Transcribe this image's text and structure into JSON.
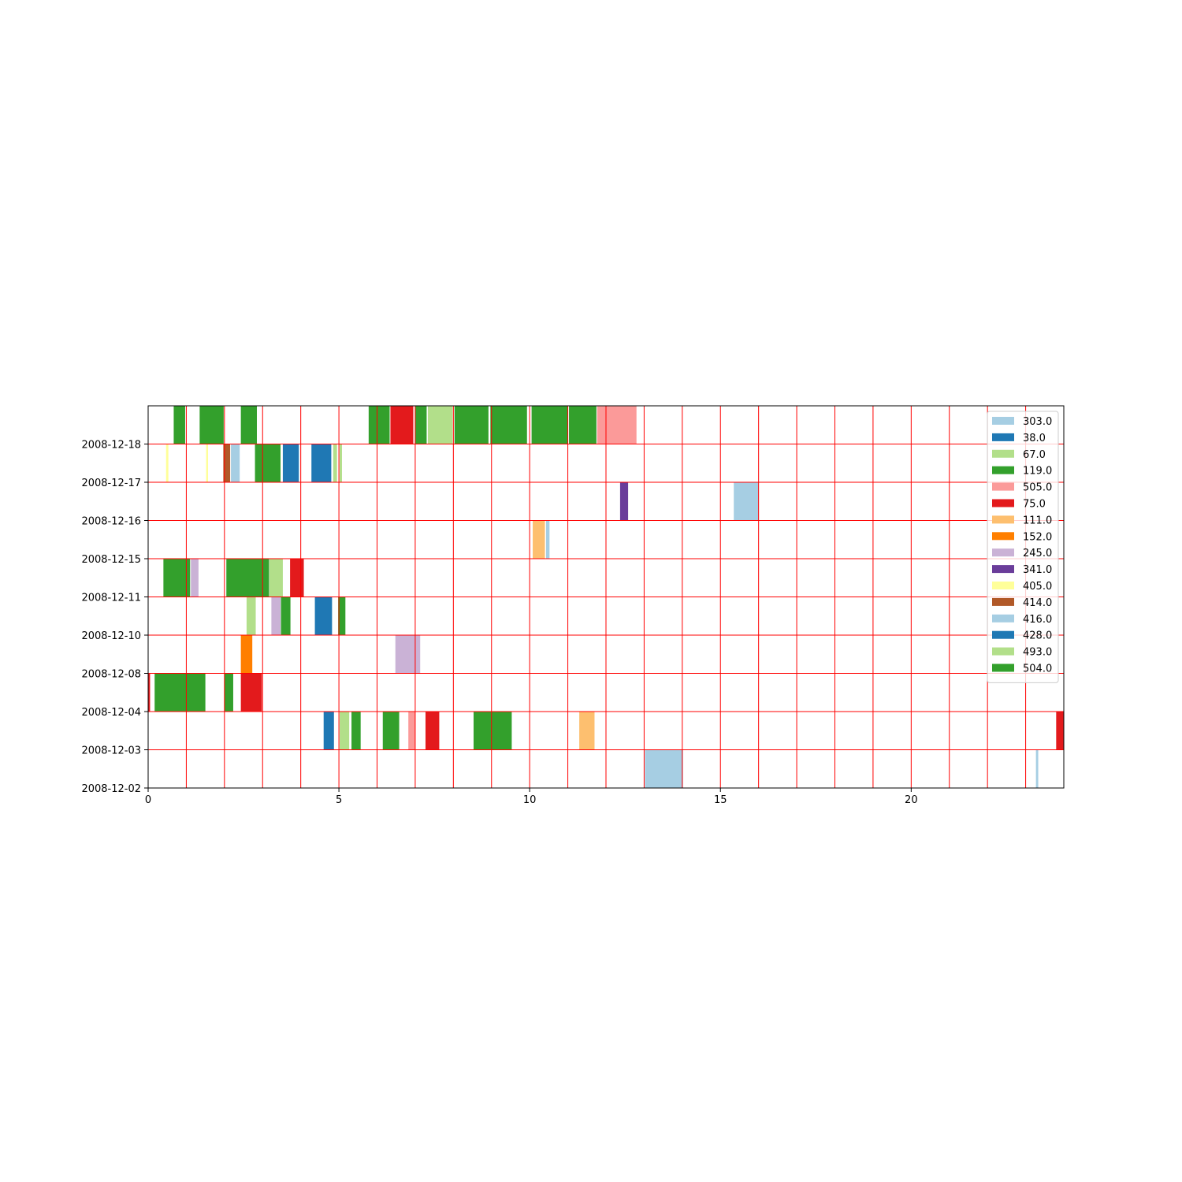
{
  "chart_data": {
    "type": "bar",
    "orientation": "horizontal-timeline",
    "title": "",
    "xlabel": "",
    "ylabel": "",
    "xlim": [
      0,
      24
    ],
    "x_ticks": [
      0,
      5,
      10,
      15,
      20
    ],
    "x_tick_labels": [
      "0",
      "5",
      "10",
      "15",
      "20"
    ],
    "y_tick_labels": [
      "2008-12-02",
      "2008-12-03",
      "2008-12-04",
      "2008-12-08",
      "2008-12-10",
      "2008-12-11",
      "2008-12-15",
      "2008-12-16",
      "2008-12-17",
      "2008-12-18"
    ],
    "rows": [
      "2008-12-02",
      "2008-12-03",
      "2008-12-04",
      "2008-12-08",
      "2008-12-10",
      "2008-12-11",
      "2008-12-15",
      "2008-12-16",
      "2008-12-17",
      "2008-12-18"
    ],
    "grid": true,
    "grid_color": "#ff0000",
    "legend_position": "top-right",
    "series": [
      {
        "name": "303.0",
        "color": "#a6cee3"
      },
      {
        "name": "38.0",
        "color": "#1f78b4"
      },
      {
        "name": "67.0",
        "color": "#b2df8a"
      },
      {
        "name": "119.0",
        "color": "#33a02c"
      },
      {
        "name": "505.0",
        "color": "#fb9a99"
      },
      {
        "name": "75.0",
        "color": "#e31a1c"
      },
      {
        "name": "111.0",
        "color": "#fdbf6f"
      },
      {
        "name": "152.0",
        "color": "#ff7f00"
      },
      {
        "name": "245.0",
        "color": "#cab2d6"
      },
      {
        "name": "341.0",
        "color": "#6a3d9a"
      },
      {
        "name": "405.0",
        "color": "#ffff99"
      },
      {
        "name": "414.0",
        "color": "#b15928"
      },
      {
        "name": "416.0",
        "color": "#a6cee3"
      },
      {
        "name": "428.0",
        "color": "#1f78b4"
      },
      {
        "name": "493.0",
        "color": "#b2df8a"
      },
      {
        "name": "504.0",
        "color": "#33a02c"
      }
    ],
    "segments": [
      {
        "row": "2008-12-02",
        "start": 13.02,
        "end": 14.02,
        "color": "#a6cee3"
      },
      {
        "row": "2008-12-02",
        "start": 23.27,
        "end": 23.33,
        "color": "#a6cee3"
      },
      {
        "row": "2008-12-03",
        "start": 4.6,
        "end": 4.87,
        "color": "#1f78b4"
      },
      {
        "row": "2008-12-03",
        "start": 5.02,
        "end": 5.27,
        "color": "#b2df8a"
      },
      {
        "row": "2008-12-03",
        "start": 5.33,
        "end": 5.57,
        "color": "#33a02c"
      },
      {
        "row": "2008-12-03",
        "start": 6.15,
        "end": 6.58,
        "color": "#33a02c"
      },
      {
        "row": "2008-12-03",
        "start": 6.82,
        "end": 7.0,
        "color": "#fb9a99"
      },
      {
        "row": "2008-12-03",
        "start": 7.27,
        "end": 7.63,
        "color": "#e31a1c"
      },
      {
        "row": "2008-12-03",
        "start": 8.53,
        "end": 9.53,
        "color": "#33a02c"
      },
      {
        "row": "2008-12-03",
        "start": 11.3,
        "end": 11.7,
        "color": "#fdbf6f"
      },
      {
        "row": "2008-12-03",
        "start": 23.8,
        "end": 24.0,
        "color": "#e31a1c"
      },
      {
        "row": "2008-12-04",
        "start": 0.0,
        "end": 0.05,
        "color": "#e31a1c"
      },
      {
        "row": "2008-12-04",
        "start": 0.17,
        "end": 1.5,
        "color": "#33a02c"
      },
      {
        "row": "2008-12-04",
        "start": 2.0,
        "end": 2.23,
        "color": "#33a02c"
      },
      {
        "row": "2008-12-04",
        "start": 2.43,
        "end": 2.98,
        "color": "#e31a1c"
      },
      {
        "row": "2008-12-08",
        "start": 2.43,
        "end": 2.73,
        "color": "#ff7f00"
      },
      {
        "row": "2008-12-08",
        "start": 6.48,
        "end": 7.13,
        "color": "#cab2d6"
      },
      {
        "row": "2008-12-10",
        "start": 2.58,
        "end": 2.82,
        "color": "#b2df8a"
      },
      {
        "row": "2008-12-10",
        "start": 3.23,
        "end": 3.47,
        "color": "#cab2d6"
      },
      {
        "row": "2008-12-10",
        "start": 3.48,
        "end": 3.73,
        "color": "#33a02c"
      },
      {
        "row": "2008-12-10",
        "start": 4.37,
        "end": 4.82,
        "color": "#1f78b4"
      },
      {
        "row": "2008-12-10",
        "start": 4.98,
        "end": 5.17,
        "color": "#33a02c"
      },
      {
        "row": "2008-12-11",
        "start": 0.4,
        "end": 1.1,
        "color": "#33a02c"
      },
      {
        "row": "2008-12-11",
        "start": 1.12,
        "end": 1.32,
        "color": "#cab2d6"
      },
      {
        "row": "2008-12-11",
        "start": 2.05,
        "end": 3.17,
        "color": "#33a02c"
      },
      {
        "row": "2008-12-11",
        "start": 3.18,
        "end": 3.53,
        "color": "#b2df8a"
      },
      {
        "row": "2008-12-11",
        "start": 3.72,
        "end": 4.08,
        "color": "#e31a1c"
      },
      {
        "row": "2008-12-15",
        "start": 10.08,
        "end": 10.4,
        "color": "#fdbf6f"
      },
      {
        "row": "2008-12-15",
        "start": 10.43,
        "end": 10.52,
        "color": "#a6cee3"
      },
      {
        "row": "2008-12-16",
        "start": 12.37,
        "end": 12.58,
        "color": "#6a3d9a"
      },
      {
        "row": "2008-12-16",
        "start": 15.35,
        "end": 16.0,
        "color": "#a6cee3"
      },
      {
        "row": "2008-12-17",
        "start": 0.47,
        "end": 0.53,
        "color": "#ffff99"
      },
      {
        "row": "2008-12-17",
        "start": 1.52,
        "end": 1.57,
        "color": "#ffff99"
      },
      {
        "row": "2008-12-17",
        "start": 1.97,
        "end": 2.15,
        "color": "#b15928"
      },
      {
        "row": "2008-12-17",
        "start": 2.17,
        "end": 2.4,
        "color": "#a6cee3"
      },
      {
        "row": "2008-12-17",
        "start": 2.8,
        "end": 3.47,
        "color": "#33a02c"
      },
      {
        "row": "2008-12-17",
        "start": 3.53,
        "end": 3.95,
        "color": "#1f78b4"
      },
      {
        "row": "2008-12-17",
        "start": 4.28,
        "end": 4.8,
        "color": "#1f78b4"
      },
      {
        "row": "2008-12-17",
        "start": 4.85,
        "end": 4.95,
        "color": "#b2df8a"
      },
      {
        "row": "2008-12-17",
        "start": 5.02,
        "end": 5.08,
        "color": "#b2df8a"
      },
      {
        "row": "2008-12-18",
        "start": 0.67,
        "end": 0.97,
        "color": "#33a02c"
      },
      {
        "row": "2008-12-18",
        "start": 1.35,
        "end": 1.98,
        "color": "#33a02c"
      },
      {
        "row": "2008-12-18",
        "start": 2.43,
        "end": 2.85,
        "color": "#33a02c"
      },
      {
        "row": "2008-12-18",
        "start": 5.78,
        "end": 6.33,
        "color": "#33a02c"
      },
      {
        "row": "2008-12-18",
        "start": 6.35,
        "end": 6.95,
        "color": "#e31a1c"
      },
      {
        "row": "2008-12-18",
        "start": 7.0,
        "end": 7.3,
        "color": "#33a02c"
      },
      {
        "row": "2008-12-18",
        "start": 7.33,
        "end": 7.98,
        "color": "#b2df8a"
      },
      {
        "row": "2008-12-18",
        "start": 8.03,
        "end": 8.92,
        "color": "#33a02c"
      },
      {
        "row": "2008-12-18",
        "start": 8.97,
        "end": 9.93,
        "color": "#33a02c"
      },
      {
        "row": "2008-12-18",
        "start": 10.05,
        "end": 11.0,
        "color": "#33a02c"
      },
      {
        "row": "2008-12-18",
        "start": 11.03,
        "end": 11.75,
        "color": "#33a02c"
      },
      {
        "row": "2008-12-18",
        "start": 11.77,
        "end": 12.8,
        "color": "#fb9a99"
      }
    ]
  }
}
